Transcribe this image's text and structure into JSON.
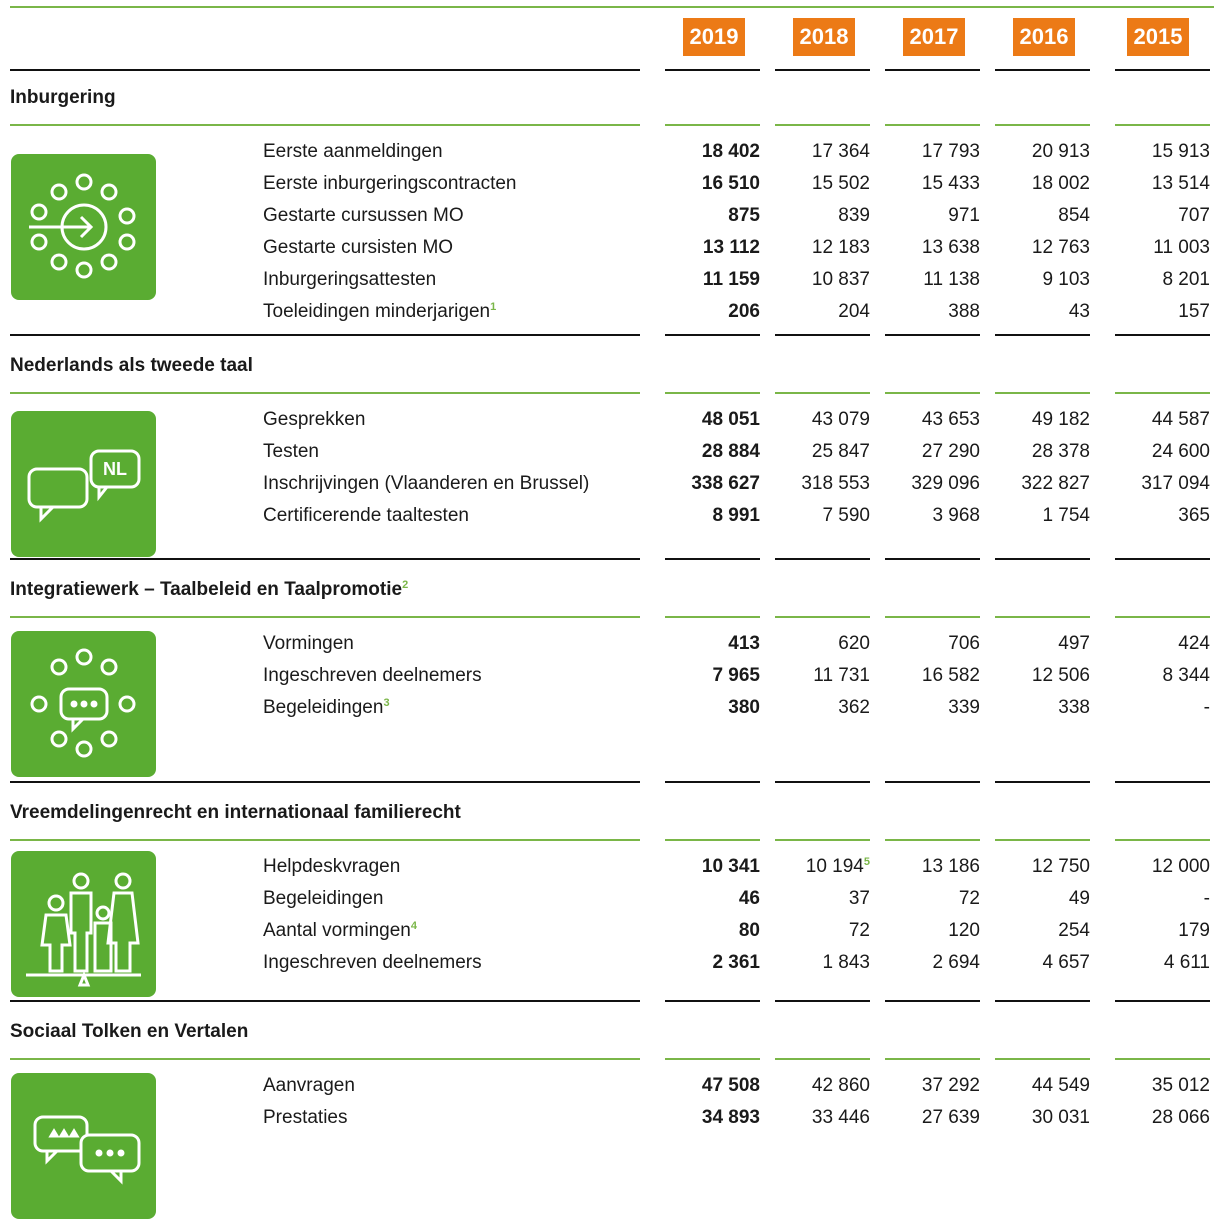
{
  "years": [
    "2019",
    "2018",
    "2017",
    "2016",
    "2015"
  ],
  "sections": [
    {
      "title": "Inburgering",
      "rows": [
        {
          "label": "Eerste aanmeldingen",
          "values": [
            "18 402",
            "17 364",
            "17 793",
            "20 913",
            "15 913"
          ]
        },
        {
          "label": "Eerste inburgeringscontracten",
          "values": [
            "16 510",
            "15 502",
            "15 433",
            "18 002",
            "13 514"
          ]
        },
        {
          "label": "Gestarte cursussen MO",
          "values": [
            "875",
            "839",
            "971",
            "854",
            "707"
          ]
        },
        {
          "label": "Gestarte cursisten MO",
          "values": [
            "13 112",
            "12 183",
            "13 638",
            "12 763",
            "11 003"
          ]
        },
        {
          "label": "Inburgeringsattesten",
          "values": [
            "11 159",
            "10 837",
            "11 138",
            "9 103",
            "8 201"
          ]
        },
        {
          "label": "Toeleidingen minderjarigen",
          "note": "1",
          "values": [
            "206",
            "204",
            "388",
            "43",
            "157"
          ]
        }
      ]
    },
    {
      "title": "Nederlands als tweede taal",
      "icon_text": "NL",
      "rows": [
        {
          "label": "Gesprekken",
          "values": [
            "48 051",
            "43 079",
            "43 653",
            "49 182",
            "44 587"
          ]
        },
        {
          "label": "Testen",
          "values": [
            "28 884",
            "25 847",
            "27 290",
            "28 378",
            "24 600"
          ]
        },
        {
          "label": "Inschrijvingen (Vlaanderen en Brussel)",
          "values": [
            "338 627",
            "318 553",
            "329 096",
            "322 827",
            "317 094"
          ]
        },
        {
          "label": "Certificerende taaltesten",
          "values": [
            "8 991",
            "7 590",
            "3 968",
            "1 754",
            "365"
          ]
        }
      ]
    },
    {
      "title": "Integratiewerk – Taalbeleid en Taalpromotie",
      "note": "2",
      "rows": [
        {
          "label": "Vormingen",
          "values": [
            "413",
            "620",
            "706",
            "497",
            "424"
          ]
        },
        {
          "label": "Ingeschreven deelnemers",
          "values": [
            "7 965",
            "11 731",
            "16 582",
            "12 506",
            "8 344"
          ]
        },
        {
          "label": "Begeleidingen",
          "note": "3",
          "values": [
            "380",
            "362",
            "339",
            "338",
            "-"
          ]
        }
      ]
    },
    {
      "title": "Vreemdelingenrecht en internationaal familierecht",
      "rows": [
        {
          "label": "Helpdeskvragen",
          "values": [
            "10 341",
            "10 194",
            "13 186",
            "12 750",
            "12 000"
          ],
          "value_notes": {
            "1": "5"
          }
        },
        {
          "label": "Begeleidingen",
          "values": [
            "46",
            "37",
            "72",
            "49",
            "-"
          ]
        },
        {
          "label": "Aantal vormingen",
          "note": "4",
          "values": [
            "80",
            "72",
            "120",
            "254",
            "179"
          ]
        },
        {
          "label": "Ingeschreven deelnemers",
          "values": [
            "2 361",
            "1 843",
            "2 694",
            "4 657",
            "4 611"
          ]
        }
      ]
    },
    {
      "title": "Sociaal Tolken en Vertalen",
      "rows": [
        {
          "label": "Aanvragen",
          "values": [
            "47 508",
            "42 860",
            "37 292",
            "44 549",
            "35 012"
          ]
        },
        {
          "label": "Prestaties",
          "values": [
            "34 893",
            "33 446",
            "27 639",
            "30 031",
            "28 066"
          ]
        }
      ]
    }
  ]
}
